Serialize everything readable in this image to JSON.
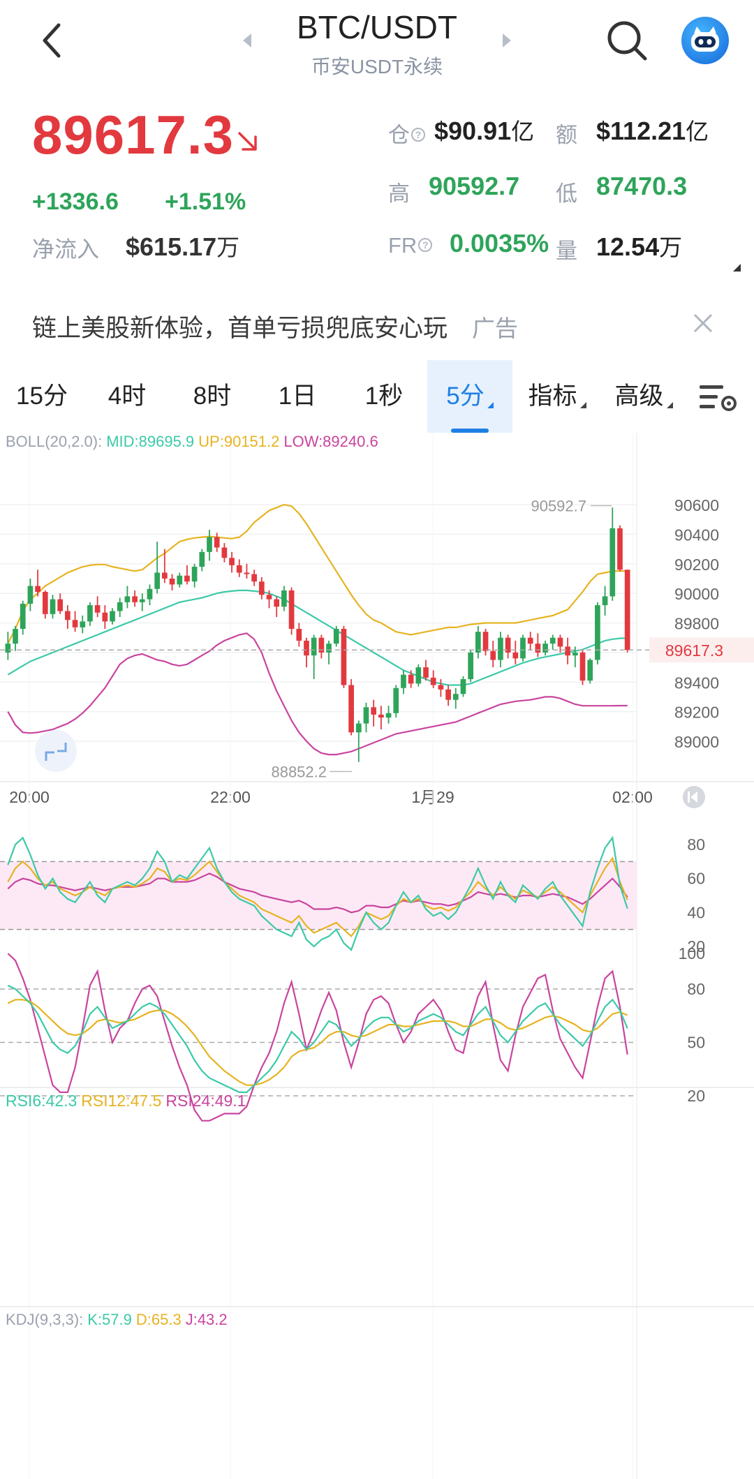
{
  "header": {
    "pair": "BTC/USDT",
    "exchange": "币安USDT永续",
    "back_icon": "back-arrow-icon",
    "search_icon": "search-icon",
    "avatar_icon": "robot-avatar-icon"
  },
  "ticker": {
    "last_price": "89617.3",
    "change": "+1336.6",
    "change_pct": "+1.51%",
    "net_inflow_label": "净流入",
    "net_inflow_value": "$615.17",
    "net_inflow_unit": "万",
    "oi_label": "仓",
    "oi_value": "$90.91",
    "oi_unit": "亿",
    "turnover_label": "额",
    "turnover_value": "$112.21",
    "turnover_unit": "亿",
    "high_label": "高",
    "high_value": "90592.7",
    "low_label": "低",
    "low_value": "87470.3",
    "fr_label": "FR",
    "fr_value": "0.0035%",
    "vol_label": "量",
    "vol_value": "12.54",
    "vol_unit": "万",
    "colors": {
      "up": "#2ea45a",
      "down": "#e2393f"
    }
  },
  "ad": {
    "text": "链上美股新体验，首单亏损兜底安心玩",
    "tag": "广告"
  },
  "tabs": [
    {
      "label": "15分"
    },
    {
      "label": "4时"
    },
    {
      "label": "8时"
    },
    {
      "label": "1日"
    },
    {
      "label": "1秒"
    },
    {
      "label": "5分",
      "active": true
    },
    {
      "label": "指标"
    },
    {
      "label": "高级"
    }
  ],
  "boll": {
    "name": "BOLL(20,2.0):",
    "mid": "MID:89695.9",
    "up": "UP:90151.2",
    "low": "LOW:89240.6"
  },
  "rsi": {
    "r6": "RSI6:42.3",
    "r12": "RSI12:47.5",
    "r24": "RSI24:49.1"
  },
  "kdj": {
    "name": "KDJ(9,3,3):",
    "k": "K:57.9",
    "d": "D:65.3",
    "j": "J:43.2"
  },
  "chart_data": {
    "type": "candlestick",
    "price_axis": {
      "ticks": [
        89000,
        89200,
        89400,
        89600,
        89800,
        90000,
        90200,
        90400,
        90600
      ],
      "range": [
        88800,
        90650
      ]
    },
    "time_ticks": [
      "20:00",
      "22:00",
      "1月29",
      "02:00"
    ],
    "current_price": 89617.3,
    "current_price_label": "89617.3",
    "period_high_label": "90592.7",
    "period_low_label": "88852.2",
    "rsi_ticks": [
      20,
      40,
      60,
      80
    ],
    "rsi_band": [
      30,
      70
    ],
    "kdj_ticks": [
      20,
      50,
      80,
      100
    ],
    "kdj_band": [
      20,
      80
    ],
    "colors": {
      "up": "#2ea45a",
      "down": "#e2393f",
      "mid": "#3cc9a8",
      "upper": "#e6b320",
      "lower": "#c9449e"
    },
    "candles": [
      [
        89600,
        89740,
        89550,
        89660
      ],
      [
        89660,
        89780,
        89610,
        89760
      ],
      [
        89760,
        89950,
        89720,
        89930
      ],
      [
        89930,
        90100,
        89880,
        90050
      ],
      [
        90050,
        90160,
        89980,
        90010
      ],
      [
        90010,
        90020,
        89830,
        89860
      ],
      [
        89860,
        89990,
        89830,
        89960
      ],
      [
        89960,
        90000,
        89860,
        89880
      ],
      [
        89880,
        89920,
        89760,
        89820
      ],
      [
        89820,
        89880,
        89740,
        89770
      ],
      [
        89770,
        89850,
        89730,
        89810
      ],
      [
        89810,
        89940,
        89780,
        89920
      ],
      [
        89920,
        89980,
        89840,
        89870
      ],
      [
        89870,
        89920,
        89760,
        89810
      ],
      [
        89810,
        89900,
        89790,
        89880
      ],
      [
        89880,
        89970,
        89840,
        89940
      ],
      [
        89940,
        90050,
        89900,
        89980
      ],
      [
        89980,
        90020,
        89910,
        89940
      ],
      [
        89940,
        90000,
        89880,
        89960
      ],
      [
        89960,
        90060,
        89920,
        90030
      ],
      [
        90030,
        90350,
        90000,
        90140
      ],
      [
        90140,
        90300,
        90070,
        90100
      ],
      [
        90100,
        90130,
        90020,
        90060
      ],
      [
        90060,
        90140,
        90040,
        90120
      ],
      [
        90120,
        90190,
        90060,
        90080
      ],
      [
        90080,
        90200,
        90040,
        90180
      ],
      [
        90180,
        90300,
        90150,
        90280
      ],
      [
        90280,
        90430,
        90220,
        90380
      ],
      [
        90380,
        90410,
        90280,
        90310
      ],
      [
        90310,
        90340,
        90210,
        90240
      ],
      [
        90240,
        90280,
        90140,
        90190
      ],
      [
        90190,
        90230,
        90110,
        90140
      ],
      [
        90140,
        90200,
        90100,
        90130
      ],
      [
        90130,
        90160,
        90050,
        90080
      ],
      [
        90080,
        90110,
        89960,
        89990
      ],
      [
        89990,
        90020,
        89900,
        89960
      ],
      [
        89960,
        89980,
        89840,
        89910
      ],
      [
        89910,
        90050,
        89880,
        90020
      ],
      [
        90020,
        90040,
        89720,
        89760
      ],
      [
        89760,
        89800,
        89640,
        89680
      ],
      [
        89680,
        89700,
        89500,
        89580
      ],
      [
        89580,
        89720,
        89420,
        89700
      ],
      [
        89700,
        89720,
        89560,
        89600
      ],
      [
        89600,
        89680,
        89520,
        89660
      ],
      [
        89660,
        89780,
        89640,
        89760
      ],
      [
        89760,
        89780,
        89360,
        89380
      ],
      [
        89380,
        89420,
        89040,
        89060
      ],
      [
        89060,
        89140,
        88860,
        89120
      ],
      [
        89120,
        89260,
        89060,
        89230
      ],
      [
        89230,
        89280,
        89100,
        89180
      ],
      [
        89180,
        89240,
        89080,
        89160
      ],
      [
        89160,
        89240,
        89120,
        89190
      ],
      [
        89190,
        89380,
        89160,
        89360
      ],
      [
        89360,
        89480,
        89320,
        89450
      ],
      [
        89450,
        89480,
        89360,
        89390
      ],
      [
        89390,
        89520,
        89370,
        89500
      ],
      [
        89500,
        89550,
        89410,
        89430
      ],
      [
        89430,
        89480,
        89360,
        89380
      ],
      [
        89380,
        89420,
        89300,
        89350
      ],
      [
        89350,
        89380,
        89240,
        89280
      ],
      [
        89280,
        89360,
        89220,
        89320
      ],
      [
        89320,
        89440,
        89300,
        89420
      ],
      [
        89420,
        89620,
        89400,
        89600
      ],
      [
        89600,
        89780,
        89560,
        89740
      ],
      [
        89740,
        89760,
        89580,
        89610
      ],
      [
        89610,
        89680,
        89500,
        89550
      ],
      [
        89550,
        89740,
        89500,
        89700
      ],
      [
        89700,
        89720,
        89560,
        89600
      ],
      [
        89600,
        89680,
        89520,
        89560
      ],
      [
        89560,
        89720,
        89540,
        89700
      ],
      [
        89700,
        89740,
        89620,
        89660
      ],
      [
        89660,
        89730,
        89570,
        89600
      ],
      [
        89600,
        89680,
        89580,
        89660
      ],
      [
        89660,
        89720,
        89620,
        89700
      ],
      [
        89700,
        89720,
        89600,
        89640
      ],
      [
        89640,
        89700,
        89520,
        89580
      ],
      [
        89580,
        89640,
        89500,
        89600
      ],
      [
        89600,
        89620,
        89380,
        89410
      ],
      [
        89410,
        89560,
        89390,
        89550
      ],
      [
        89550,
        89940,
        89520,
        89920
      ],
      [
        89920,
        90050,
        89850,
        89980
      ],
      [
        89980,
        90580,
        89950,
        90440
      ],
      [
        90440,
        90460,
        90150,
        90160
      ],
      [
        90160,
        90160,
        89600,
        89617.3
      ]
    ],
    "boll_mid": [
      89450,
      89480,
      89510,
      89540,
      89560,
      89580,
      89600,
      89620,
      89640,
      89660,
      89680,
      89700,
      89720,
      89740,
      89760,
      89780,
      89800,
      89820,
      89840,
      89860,
      89880,
      89900,
      89920,
      89940,
      89950,
      89960,
      89970,
      89985,
      90000,
      90010,
      90015,
      90020,
      90020,
      90015,
      90010,
      90000,
      89980,
      89960,
      89930,
      89900,
      89870,
      89840,
      89810,
      89780,
      89750,
      89720,
      89690,
      89660,
      89630,
      89600,
      89570,
      89540,
      89510,
      89480,
      89460,
      89440,
      89420,
      89400,
      89390,
      89380,
      89380,
      89380,
      89390,
      89410,
      89430,
      89450,
      89470,
      89490,
      89510,
      89530,
      89545,
      89560,
      89570,
      89580,
      89590,
      89600,
      89610,
      89620,
      89640,
      89660,
      89680,
      89690,
      89696,
      89696
    ],
    "boll_up": [
      89660,
      89760,
      89880,
      89960,
      90000,
      90050,
      90080,
      90110,
      90140,
      90160,
      90180,
      90190,
      90195,
      90195,
      90180,
      90170,
      90160,
      90150,
      90160,
      90200,
      90240,
      90270,
      90310,
      90350,
      90365,
      90375,
      90380,
      90385,
      90380,
      90375,
      90370,
      90380,
      90420,
      90480,
      90520,
      90560,
      90580,
      90600,
      90590,
      90540,
      90470,
      90390,
      90310,
      90230,
      90150,
      90070,
      89990,
      89920,
      89860,
      89820,
      89800,
      89770,
      89740,
      89730,
      89720,
      89730,
      89740,
      89750,
      89760,
      89770,
      89770,
      89780,
      89790,
      89795,
      89800,
      89800,
      89800,
      89800,
      89800,
      89810,
      89820,
      89830,
      89840,
      89850,
      89870,
      89890,
      89950,
      90010,
      90080,
      90130,
      90140,
      90150,
      90151.2,
      90151.2
    ],
    "boll_low": [
      89200,
      89110,
      89060,
      89055,
      89060,
      89070,
      89080,
      89100,
      89120,
      89150,
      89190,
      89240,
      89300,
      89360,
      89440,
      89520,
      89560,
      89580,
      89590,
      89570,
      89550,
      89540,
      89520,
      89510,
      89520,
      89550,
      89580,
      89610,
      89650,
      89680,
      89700,
      89720,
      89730,
      89690,
      89600,
      89460,
      89340,
      89240,
      89140,
      89060,
      89000,
      88950,
      88920,
      88910,
      88910,
      88920,
      88930,
      88950,
      88970,
      88990,
      89010,
      89030,
      89050,
      89060,
      89070,
      89080,
      89090,
      89100,
      89110,
      89120,
      89130,
      89150,
      89170,
      89190,
      89210,
      89230,
      89250,
      89260,
      89270,
      89275,
      89280,
      89290,
      89300,
      89300,
      89290,
      89270,
      89250,
      89240,
      89240,
      89240,
      89240,
      89240,
      89240.6,
      89240.6
    ],
    "rsi6": [
      68,
      80,
      84,
      74,
      62,
      54,
      60,
      52,
      48,
      46,
      52,
      58,
      50,
      46,
      54,
      56,
      58,
      56,
      60,
      66,
      76,
      70,
      58,
      62,
      60,
      66,
      72,
      78,
      66,
      58,
      52,
      48,
      46,
      44,
      38,
      34,
      30,
      28,
      26,
      34,
      24,
      20,
      24,
      26,
      30,
      22,
      18,
      30,
      40,
      34,
      30,
      34,
      44,
      52,
      46,
      50,
      42,
      38,
      40,
      36,
      40,
      48,
      56,
      66,
      56,
      48,
      58,
      50,
      46,
      56,
      52,
      48,
      54,
      58,
      50,
      44,
      38,
      32,
      52,
      66,
      78,
      84,
      56,
      42.3
    ],
    "rsi12": [
      58,
      66,
      70,
      66,
      60,
      56,
      58,
      54,
      52,
      50,
      52,
      55,
      52,
      50,
      54,
      55,
      56,
      55,
      57,
      60,
      66,
      64,
      58,
      60,
      59,
      62,
      66,
      70,
      64,
      58,
      54,
      50,
      48,
      46,
      42,
      40,
      38,
      36,
      34,
      38,
      32,
      28,
      30,
      32,
      34,
      30,
      26,
      32,
      40,
      38,
      36,
      38,
      44,
      48,
      46,
      48,
      44,
      42,
      43,
      41,
      43,
      48,
      52,
      58,
      54,
      50,
      55,
      51,
      48,
      53,
      51,
      49,
      52,
      55,
      52,
      48,
      44,
      40,
      50,
      58,
      66,
      72,
      58,
      47.5
    ],
    "rsi24": [
      54,
      58,
      60,
      59,
      57,
      56,
      56,
      55,
      54,
      53,
      54,
      55,
      54,
      53,
      54,
      55,
      55,
      55,
      56,
      57,
      60,
      60,
      58,
      58,
      58,
      59,
      61,
      63,
      61,
      58,
      56,
      54,
      53,
      52,
      50,
      49,
      48,
      47,
      46,
      47,
      45,
      42,
      42,
      42,
      43,
      42,
      40,
      41,
      44,
      44,
      43,
      43,
      45,
      47,
      46,
      47,
      46,
      45,
      45,
      44,
      45,
      47,
      49,
      52,
      51,
      50,
      51,
      50,
      49,
      50,
      50,
      49,
      50,
      51,
      50,
      49,
      47,
      45,
      48,
      52,
      56,
      60,
      55,
      49.1
    ],
    "kdj_k": [
      82,
      80,
      76,
      72,
      66,
      58,
      50,
      46,
      44,
      48,
      56,
      66,
      70,
      64,
      58,
      60,
      62,
      66,
      70,
      72,
      70,
      66,
      60,
      54,
      48,
      40,
      34,
      30,
      28,
      26,
      24,
      22,
      22,
      26,
      30,
      34,
      40,
      48,
      56,
      52,
      46,
      50,
      56,
      62,
      60,
      54,
      48,
      52,
      58,
      62,
      64,
      64,
      60,
      56,
      58,
      62,
      64,
      66,
      64,
      60,
      56,
      54,
      60,
      66,
      70,
      62,
      54,
      50,
      56,
      62,
      66,
      70,
      72,
      66,
      60,
      56,
      52,
      48,
      54,
      62,
      70,
      74,
      68,
      57.9
    ],
    "kdj_d": [
      72,
      74,
      74,
      73,
      70,
      66,
      62,
      58,
      55,
      54,
      55,
      58,
      62,
      63,
      62,
      61,
      62,
      63,
      65,
      67,
      68,
      68,
      66,
      63,
      59,
      54,
      48,
      42,
      38,
      34,
      31,
      28,
      26,
      26,
      27,
      29,
      32,
      36,
      42,
      45,
      46,
      47,
      50,
      54,
      56,
      56,
      54,
      53,
      54,
      56,
      58,
      60,
      60,
      59,
      59,
      60,
      61,
      62,
      62,
      62,
      61,
      59,
      59,
      61,
      63,
      63,
      61,
      58,
      57,
      58,
      60,
      62,
      64,
      65,
      64,
      62,
      60,
      57,
      56,
      58,
      62,
      66,
      67,
      65.3
    ],
    "kdj_j": [
      100,
      96,
      86,
      74,
      58,
      42,
      26,
      22,
      22,
      36,
      58,
      82,
      90,
      68,
      50,
      58,
      62,
      72,
      80,
      82,
      76,
      62,
      48,
      36,
      26,
      12,
      6,
      6,
      8,
      10,
      10,
      10,
      14,
      26,
      36,
      44,
      56,
      72,
      84,
      66,
      46,
      56,
      68,
      78,
      68,
      50,
      36,
      50,
      66,
      74,
      76,
      72,
      60,
      50,
      56,
      66,
      70,
      74,
      68,
      56,
      46,
      44,
      62,
      76,
      84,
      60,
      40,
      34,
      54,
      70,
      78,
      86,
      88,
      68,
      52,
      44,
      36,
      30,
      50,
      70,
      86,
      90,
      70,
      43.2
    ]
  }
}
